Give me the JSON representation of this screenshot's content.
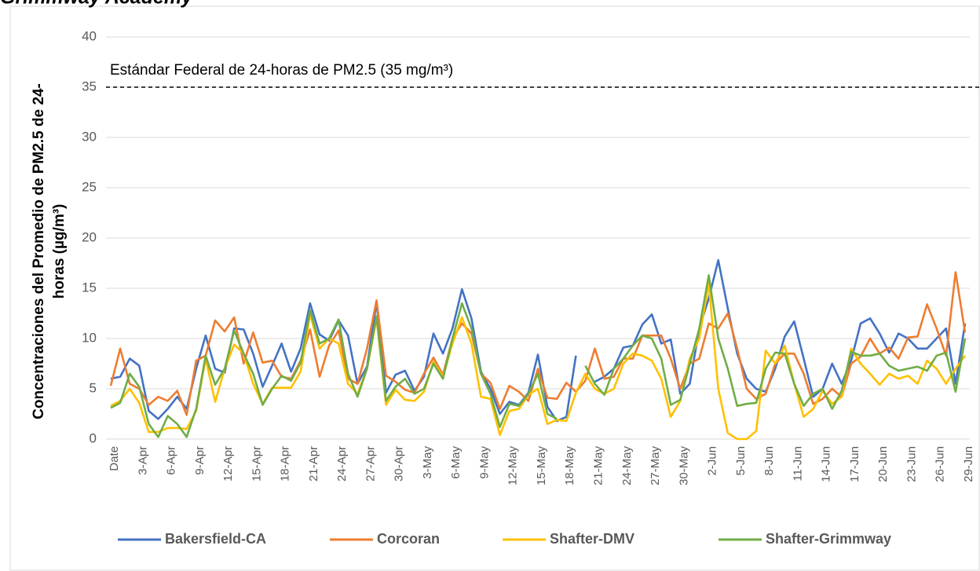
{
  "chart_data": {
    "type": "line",
    "title": "Grimmway Academy",
    "ylabel": [
      "Concentraciones del Promedio de PM2.5 de 24-",
      "horas (µg/m³)"
    ],
    "annotation": "Estándar Federal de 24-horas de PM2.5 (35 mg/m³)",
    "reference_line": 35,
    "categories": [
      "Date",
      null,
      null,
      "3-Apr",
      null,
      null,
      "6-Apr",
      null,
      null,
      "9-Apr",
      null,
      null,
      "12-Apr",
      null,
      null,
      "15-Apr",
      null,
      null,
      "18-Apr",
      null,
      null,
      "21-Apr",
      null,
      null,
      "24-Apr",
      null,
      null,
      "27-Apr",
      null,
      null,
      "30-Apr",
      null,
      null,
      "3-May",
      null,
      null,
      "6-May",
      null,
      null,
      "9-May",
      null,
      null,
      "12-May",
      null,
      null,
      "15-May",
      null,
      null,
      "18-May",
      null,
      null,
      "21-May",
      null,
      null,
      "24-May",
      null,
      null,
      "27-May",
      null,
      null,
      "30-May",
      null,
      null,
      "2-Jun",
      null,
      null,
      "5-Jun",
      null,
      null,
      "8-Jun",
      null,
      null,
      "11-Jun",
      null,
      null,
      "14-Jun",
      null,
      null,
      "17-Jun",
      null,
      null,
      "20-Jun",
      null,
      null,
      "23-Jun",
      null,
      null,
      "26-Jun",
      null,
      null,
      "29-Jun"
    ],
    "series": [
      {
        "name": "Bakersfield-CA",
        "color": "#4472c4",
        "values": [
          6,
          6.2,
          8,
          7.3,
          2.8,
          2,
          3,
          4.2,
          3,
          7,
          10.3,
          7,
          6.6,
          11,
          10.9,
          8.5,
          5.2,
          7.3,
          9.5,
          6.7,
          9,
          13.5,
          10.4,
          9.8,
          11.8,
          10.3,
          5.5,
          7.2,
          13.6,
          4.6,
          6.4,
          6.8,
          4.8,
          6.2,
          10.5,
          8.5,
          11,
          14.9,
          12,
          6.7,
          5,
          2.5,
          3.7,
          3.4,
          4.6,
          8.4,
          3.2,
          1.8,
          2.2,
          8.3,
          null,
          5.7,
          6.2,
          7,
          9.1,
          9.3,
          11.4,
          12.4,
          9.5,
          9.9,
          4.5,
          5.5,
          11,
          14,
          17.8,
          13,
          8.5,
          6,
          5,
          4.7,
          7,
          10.2,
          11.7,
          8,
          4.2,
          5,
          7.5,
          5.5,
          7.8,
          11.5,
          12,
          10.5,
          8.6,
          10.5,
          10,
          9,
          9,
          10,
          11,
          5.5,
          11.5
        ]
      },
      {
        "name": "Corcoran",
        "color": "#ed7d31",
        "values": [
          5.3,
          9,
          5.5,
          5,
          3.4,
          4.2,
          3.8,
          4.8,
          2.4,
          7.8,
          8.3,
          11.8,
          10.7,
          12.1,
          7.5,
          10.6,
          7.6,
          7.8,
          6.2,
          6,
          7.8,
          10.9,
          6.2,
          9.3,
          10.8,
          6,
          5.5,
          9,
          13.8,
          6.3,
          5.7,
          4.9,
          4.6,
          6.5,
          8.1,
          6.4,
          10,
          11.5,
          10.5,
          6.5,
          5.6,
          3,
          5.3,
          4.7,
          3.8,
          7,
          4.1,
          4,
          5.6,
          4.7,
          5.8,
          9,
          6,
          6.2,
          8,
          8,
          10.3,
          10.3,
          10.3,
          8,
          5,
          7.5,
          8,
          11.5,
          11,
          12.5,
          9,
          5,
          4,
          4.5,
          7.5,
          8.5,
          8.5,
          6.5,
          3.5,
          4,
          5,
          4.2,
          7.5,
          8.2,
          10,
          8.5,
          9.1,
          8,
          10.1,
          10.2,
          13.4,
          11,
          8.3,
          16.6,
          10.6
        ]
      },
      {
        "name": "Shafter-DMV",
        "color": "#ffc000",
        "values": [
          3.3,
          3.8,
          5,
          3.6,
          0.7,
          0.7,
          1.1,
          1.1,
          1,
          2.8,
          8,
          3.7,
          7,
          9.4,
          8.5,
          5.5,
          3.5,
          5.1,
          5.1,
          5.1,
          6.7,
          12.4,
          9,
          10,
          9.5,
          5.5,
          4.5,
          7,
          12,
          3.4,
          4.9,
          3.9,
          3.8,
          4.7,
          7.7,
          6.2,
          9.5,
          12.1,
          9.5,
          4.2,
          4,
          0.4,
          2.8,
          3,
          4.4,
          5,
          1.5,
          1.9,
          1.8,
          4.6,
          6.5,
          5,
          4.5,
          5,
          7.5,
          8.5,
          8.3,
          7.8,
          6,
          2.2,
          3.8,
          8,
          10,
          15.5,
          5,
          0.6,
          0,
          0,
          0.8,
          8.8,
          7.5,
          9.3,
          5.5,
          2.2,
          3,
          4.8,
          3.5,
          4.2,
          9,
          7.5,
          6.5,
          5.4,
          6.5,
          6,
          6.3,
          5.5,
          7.8,
          7,
          5.5,
          7,
          8.3
        ]
      },
      {
        "name": "Shafter-Grimmway",
        "color": "#70ad47",
        "values": [
          3.1,
          3.6,
          6.5,
          5.2,
          1.5,
          0.2,
          2.3,
          1.5,
          0.2,
          3,
          8.3,
          5.4,
          7,
          10.8,
          8.5,
          6.5,
          3.4,
          5,
          6.3,
          5.8,
          7.6,
          12.8,
          9.5,
          10,
          11.9,
          6.5,
          4.2,
          7,
          12.2,
          3.8,
          5.2,
          6,
          4.5,
          5,
          7.5,
          6,
          10,
          13.5,
          11,
          6.5,
          4.5,
          1.2,
          3.5,
          3.3,
          4.5,
          6.5,
          2.5,
          2,
          null,
          null,
          7.3,
          5.5,
          4.4,
          7,
          8,
          9.3,
          10.3,
          10,
          8,
          3.4,
          3.9,
          7.5,
          11,
          16.3,
          10,
          7,
          3.3,
          3.5,
          3.6,
          7,
          8.6,
          8.5,
          5.5,
          3.3,
          4.5,
          5,
          3,
          4.8,
          8.7,
          8.3,
          8.3,
          8.5,
          7.3,
          6.8,
          7,
          7.2,
          6.8,
          8.3,
          8.6,
          4.7,
          10
        ]
      }
    ],
    "ylim": [
      0,
      40
    ],
    "yticks": [
      0,
      5,
      10,
      15,
      20,
      25,
      30,
      35,
      40
    ],
    "grid": true,
    "legend": "bottom"
  }
}
